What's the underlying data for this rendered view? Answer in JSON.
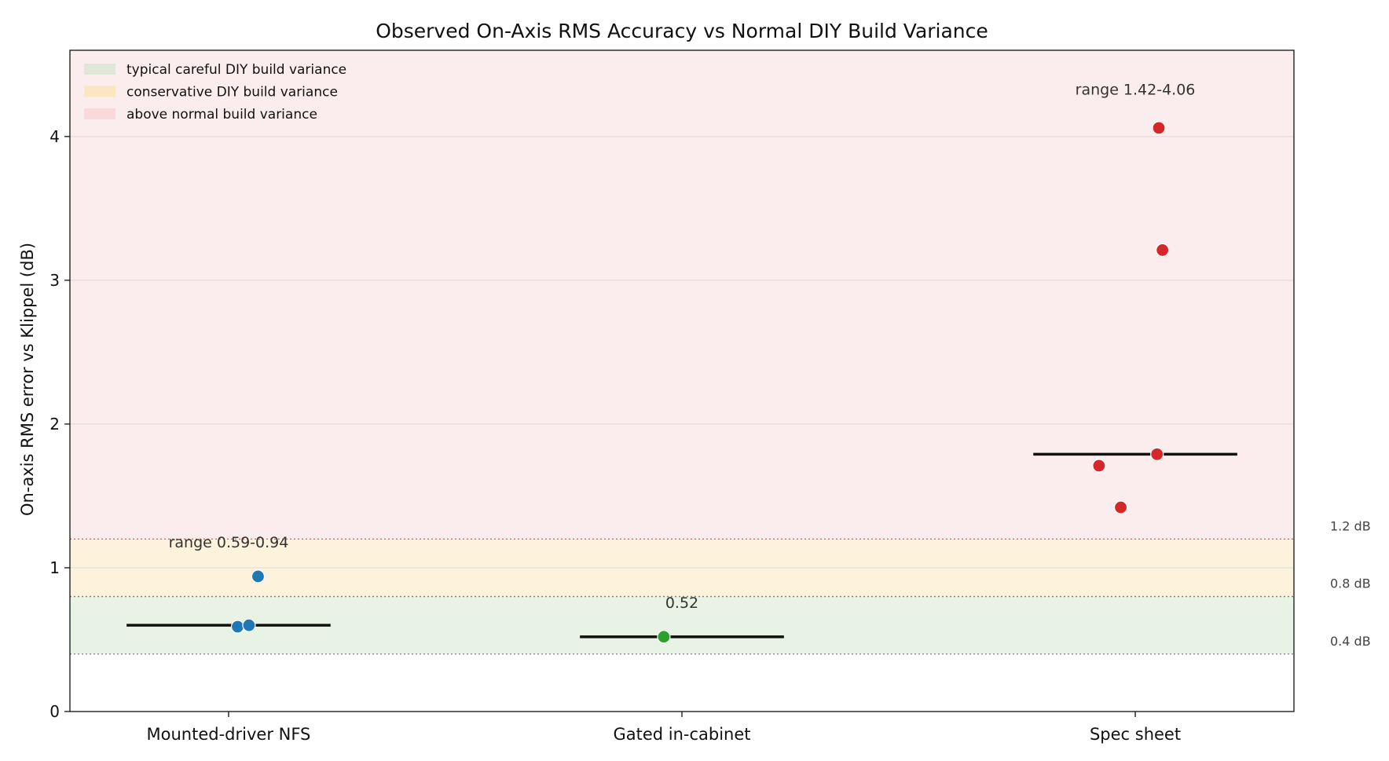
{
  "chart_data": {
    "type": "scatter",
    "title": "Observed On-Axis RMS Accuracy vs Normal DIY Build Variance",
    "xlabel": "",
    "ylabel": "On-axis RMS error vs Klippel (dB)",
    "ylim": [
      0,
      4.6
    ],
    "yticks": [
      0,
      1,
      2,
      3,
      4
    ],
    "grid": "horizontal",
    "legend_position": "top-left",
    "categories": [
      "Mounted-driver NFS",
      "Gated in-cabinet",
      "Spec sheet"
    ],
    "bands": [
      {
        "name": "typical careful DIY build variance",
        "from": 0.4,
        "to": 0.8,
        "color": "#e8f3e6",
        "legend_color": "#dfe8d8"
      },
      {
        "name": "conservative DIY build variance",
        "from": 0.8,
        "to": 1.2,
        "color": "#fdf3dc",
        "legend_color": "#fbe6c2"
      },
      {
        "name": "above normal build variance",
        "from": 1.2,
        "to": 4.6,
        "color": "#fbeced",
        "legend_color": "#f8dadc"
      }
    ],
    "threshold_lines": [
      {
        "value": 0.4,
        "label": "0.4 dB",
        "color": "#7f7f7f"
      },
      {
        "value": 0.8,
        "label": "0.8 dB",
        "color": "#7f7f50"
      },
      {
        "value": 1.2,
        "label": "1.2 dB",
        "color": "#b07070"
      }
    ],
    "series": [
      {
        "category": "Mounted-driver NFS",
        "color": "#1f77b4",
        "points": [
          {
            "offset": 0.02,
            "y": 0.59
          },
          {
            "offset": 0.045,
            "y": 0.6
          },
          {
            "offset": 0.065,
            "y": 0.94
          }
        ],
        "median": 0.6,
        "annotation": "range 0.59-0.94",
        "annotation_y": 1.18
      },
      {
        "category": "Gated in-cabinet",
        "color": "#2ca02c",
        "points": [
          {
            "offset": -0.04,
            "y": 0.52
          }
        ],
        "median": 0.52,
        "annotation": "0.52",
        "annotation_y": 0.76
      },
      {
        "category": "Spec sheet",
        "color": "#d62728",
        "points": [
          {
            "offset": -0.08,
            "y": 1.71
          },
          {
            "offset": -0.032,
            "y": 1.42
          },
          {
            "offset": 0.048,
            "y": 1.79
          },
          {
            "offset": 0.052,
            "y": 4.06
          },
          {
            "offset": 0.06,
            "y": 3.21
          }
        ],
        "median": 1.79,
        "annotation": "range 1.42-4.06",
        "annotation_y": 4.33
      }
    ]
  }
}
